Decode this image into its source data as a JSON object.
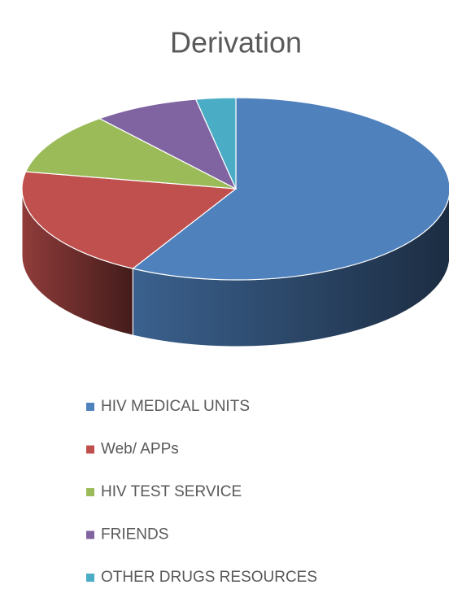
{
  "chart_data": {
    "type": "pie",
    "title": "Derivation",
    "categories": [
      "HIV MEDICAL UNITS",
      "Web/ APPs",
      "HIV TEST SERVICE",
      "FRIENDS",
      "OTHER DRUGS RESOURCES"
    ],
    "values": [
      58,
      20,
      11,
      8,
      3
    ],
    "colors": [
      "#4f81bd",
      "#c0504d",
      "#9bbb59",
      "#8064a2",
      "#4bacc6"
    ],
    "legend": "bottom"
  }
}
